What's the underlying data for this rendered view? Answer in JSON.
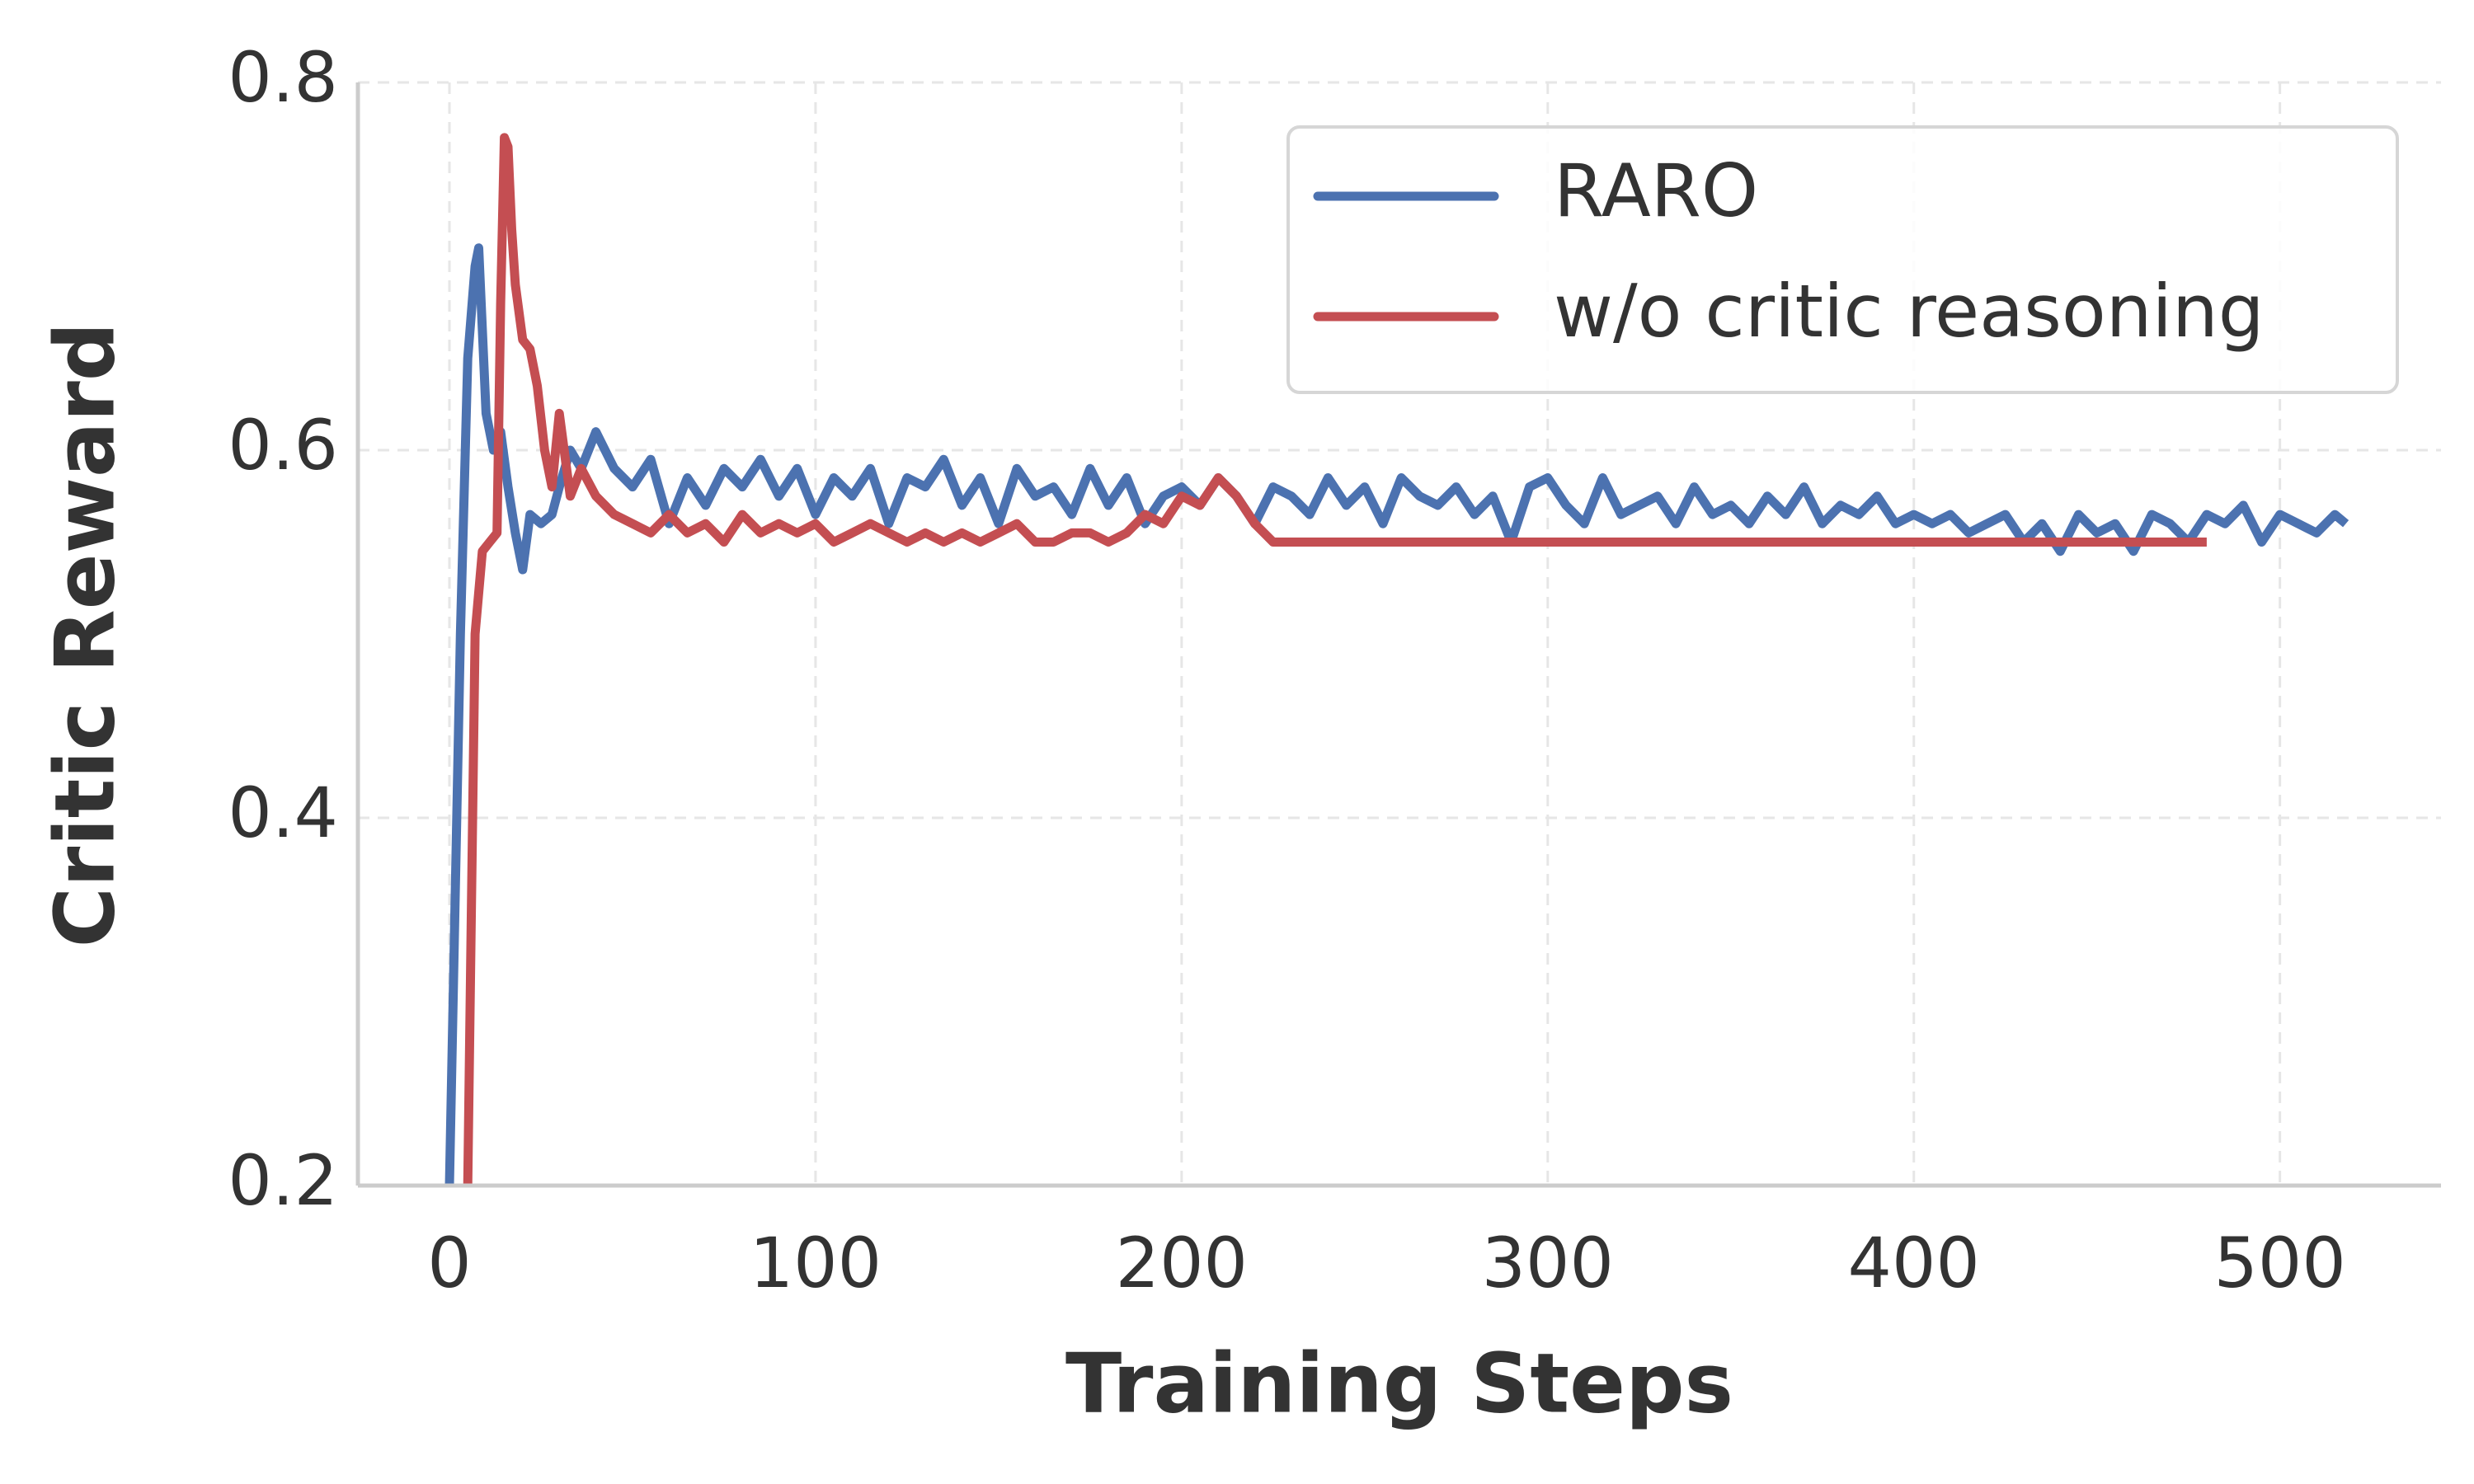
{
  "chart_data": {
    "type": "line",
    "xlabel": "Training Steps",
    "ylabel": "Critic Reward",
    "xlim": [
      -25,
      544
    ],
    "ylim": [
      0.2,
      0.8
    ],
    "xticks": [
      0,
      100,
      200,
      300,
      400,
      500
    ],
    "yticks": [
      0.2,
      0.4,
      0.6,
      0.8
    ],
    "grid": true,
    "legend": "upper right",
    "series": [
      {
        "name": "RARO",
        "color": "#4c72b0",
        "x": [
          0,
          3,
          5,
          7,
          8,
          10,
          12,
          14,
          16,
          18,
          20,
          22,
          25,
          28,
          30,
          33,
          36,
          40,
          45,
          50,
          55,
          60,
          65,
          70,
          75,
          80,
          85,
          90,
          95,
          100,
          105,
          110,
          115,
          120,
          125,
          130,
          135,
          140,
          145,
          150,
          155,
          160,
          165,
          170,
          175,
          180,
          185,
          190,
          195,
          200,
          205,
          210,
          215,
          220,
          225,
          230,
          235,
          240,
          245,
          250,
          255,
          260,
          265,
          270,
          275,
          280,
          285,
          290,
          295,
          300,
          305,
          310,
          315,
          320,
          325,
          330,
          335,
          340,
          345,
          350,
          355,
          360,
          365,
          370,
          375,
          380,
          385,
          390,
          395,
          400,
          405,
          410,
          415,
          420,
          425,
          430,
          435,
          440,
          445,
          450,
          455,
          460,
          465,
          470,
          475,
          480,
          485,
          490,
          495,
          500,
          505,
          510,
          515,
          518
        ],
        "values": [
          0.2,
          0.5,
          0.65,
          0.7,
          0.71,
          0.62,
          0.6,
          0.61,
          0.58,
          0.555,
          0.535,
          0.565,
          0.56,
          0.565,
          0.58,
          0.6,
          0.59,
          0.61,
          0.59,
          0.58,
          0.595,
          0.56,
          0.585,
          0.57,
          0.59,
          0.58,
          0.595,
          0.575,
          0.59,
          0.565,
          0.585,
          0.575,
          0.59,
          0.56,
          0.585,
          0.58,
          0.595,
          0.57,
          0.585,
          0.56,
          0.59,
          0.575,
          0.58,
          0.565,
          0.59,
          0.57,
          0.585,
          0.56,
          0.575,
          0.58,
          0.57,
          0.585,
          0.575,
          0.56,
          0.58,
          0.575,
          0.565,
          0.585,
          0.57,
          0.58,
          0.56,
          0.585,
          0.575,
          0.57,
          0.58,
          0.565,
          0.575,
          0.55,
          0.58,
          0.585,
          0.57,
          0.56,
          0.585,
          0.565,
          0.57,
          0.575,
          0.56,
          0.58,
          0.565,
          0.57,
          0.56,
          0.575,
          0.565,
          0.58,
          0.56,
          0.57,
          0.565,
          0.575,
          0.56,
          0.565,
          0.56,
          0.565,
          0.555,
          0.56,
          0.565,
          0.55,
          0.56,
          0.545,
          0.565,
          0.555,
          0.56,
          0.545,
          0.565,
          0.56,
          0.55,
          0.565,
          0.56,
          0.57,
          0.55,
          0.565,
          0.56,
          0.555,
          0.565,
          0.56
        ]
      },
      {
        "name": "w/o critic reasoning",
        "color": "#c44e52",
        "x": [
          5,
          6,
          7,
          9,
          11,
          13,
          14,
          15,
          16,
          17,
          18,
          20,
          22,
          24,
          26,
          28,
          30,
          33,
          36,
          40,
          45,
          50,
          55,
          60,
          65,
          70,
          75,
          80,
          85,
          90,
          95,
          100,
          105,
          110,
          115,
          120,
          125,
          130,
          135,
          140,
          145,
          150,
          155,
          160,
          165,
          170,
          175,
          180,
          185,
          190,
          195,
          200,
          205,
          210,
          215,
          220,
          225,
          230,
          240,
          250,
          260,
          270,
          280,
          290,
          300,
          310,
          320,
          330,
          340,
          350,
          360,
          370,
          380,
          390,
          400,
          410,
          420,
          430,
          440,
          450,
          460,
          470,
          480
        ],
        "values": [
          0.2,
          0.35,
          0.5,
          0.545,
          0.55,
          0.555,
          0.68,
          0.77,
          0.765,
          0.72,
          0.69,
          0.66,
          0.655,
          0.635,
          0.6,
          0.58,
          0.62,
          0.575,
          0.59,
          0.575,
          0.565,
          0.56,
          0.555,
          0.565,
          0.555,
          0.56,
          0.55,
          0.565,
          0.555,
          0.56,
          0.555,
          0.56,
          0.55,
          0.555,
          0.56,
          0.555,
          0.55,
          0.555,
          0.55,
          0.555,
          0.55,
          0.555,
          0.56,
          0.55,
          0.55,
          0.555,
          0.555,
          0.55,
          0.555,
          0.565,
          0.56,
          0.575,
          0.57,
          0.585,
          0.575,
          0.56,
          0.55,
          0.55,
          0.55,
          0.55,
          0.55,
          0.55,
          0.55,
          0.55,
          0.55,
          0.55,
          0.55,
          0.55,
          0.55,
          0.55,
          0.55,
          0.55,
          0.55,
          0.55,
          0.55,
          0.55,
          0.55,
          0.55,
          0.55,
          0.55,
          0.55,
          0.55,
          0.55
        ]
      }
    ]
  }
}
